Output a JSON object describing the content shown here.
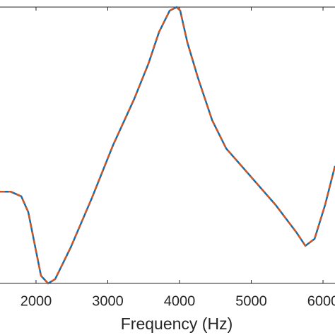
{
  "chart_data": {
    "type": "line",
    "xlabel": "Frequency (Hz)",
    "x": [
      1498,
      1646,
      1794,
      1892,
      1991,
      2069,
      2168,
      2266,
      2483,
      2779,
      3075,
      3370,
      3567,
      3715,
      3863,
      3961,
      4010,
      4109,
      4257,
      4454,
      4651,
      4996,
      5340,
      5636,
      5754,
      5882,
      6029,
      6167
    ],
    "series": [
      {
        "color": "#0072bd",
        "values": [
          0.332,
          0.332,
          0.315,
          0.258,
          0.13,
          0.028,
          0,
          0.015,
          0.13,
          0.309,
          0.501,
          0.668,
          0.795,
          0.91,
          0.987,
          1,
          0.987,
          0.872,
          0.744,
          0.591,
          0.488,
          0.386,
          0.284,
          0.182,
          0.136,
          0.161,
          0.284,
          0.425
        ]
      },
      {
        "color": "#d95319",
        "dashed": true,
        "values": [
          0.332,
          0.332,
          0.315,
          0.258,
          0.13,
          0.028,
          0,
          0.015,
          0.13,
          0.309,
          0.501,
          0.668,
          0.795,
          0.91,
          0.987,
          1,
          0.987,
          0.872,
          0.744,
          0.591,
          0.488,
          0.386,
          0.284,
          0.182,
          0.136,
          0.161,
          0.284,
          0.425
        ]
      }
    ],
    "xlim": [
      1498,
      6167
    ],
    "ylim": [
      0,
      1
    ],
    "xticks": [
      2000,
      3000,
      4000,
      5000,
      6000
    ]
  }
}
